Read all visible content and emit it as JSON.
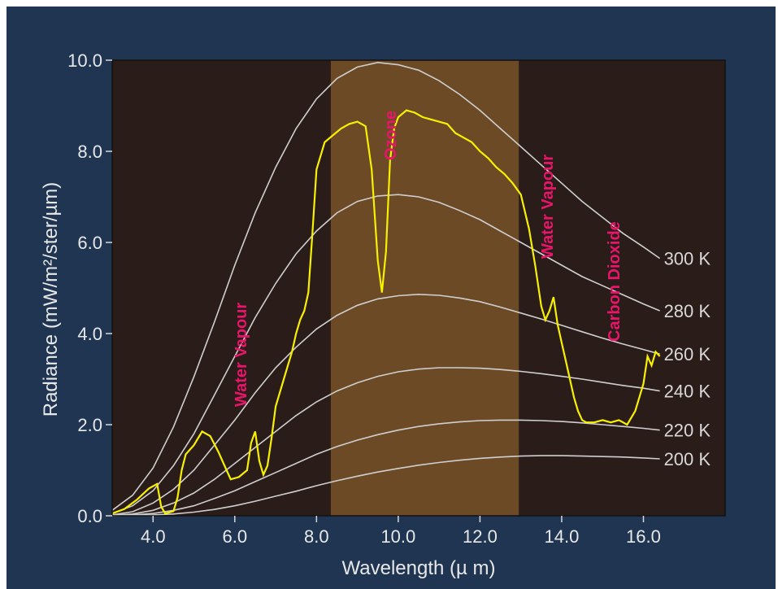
{
  "chart_data": {
    "type": "line",
    "xlabel": "Wavelength (µ m)",
    "ylabel": "Radiance (mW/m²/ster/µm)",
    "xlim": [
      3.0,
      18.0
    ],
    "ylim": [
      0.0,
      10.0
    ],
    "x_ticks": [
      "4.0",
      "6.0",
      "8.0",
      "10.0",
      "12.0",
      "14.0",
      "16.0"
    ],
    "x_tick_values": [
      4,
      6,
      8,
      10,
      12,
      14,
      16
    ],
    "y_ticks": [
      "0.0",
      "2.0",
      "4.0",
      "6.0",
      "8.0",
      "10.0"
    ],
    "y_tick_values": [
      0,
      2,
      4,
      6,
      8,
      10
    ],
    "grid": false,
    "background_color": "#2a1c18",
    "frame_color": "#1f3552",
    "window_color": "#6b4a25",
    "curve_color": "#cfcfcf",
    "measured_color": "#f7f000",
    "annotation_color": "#e8156b",
    "highlight_band": {
      "x_start": 8.35,
      "x_end": 12.95
    },
    "blackbody_curves": [
      {
        "name": "300 K",
        "label": "300 K",
        "x": [
          3.0,
          3.5,
          4.0,
          4.5,
          5.0,
          5.5,
          6.0,
          6.5,
          7.0,
          7.5,
          8.0,
          8.5,
          9.0,
          9.5,
          10.0,
          10.5,
          11.0,
          11.5,
          12.0,
          12.5,
          13.0,
          13.5,
          14.0,
          14.5,
          15.0,
          15.5,
          16.0,
          16.4
        ],
        "y": [
          0.12,
          0.45,
          1.05,
          1.95,
          3.05,
          4.25,
          5.5,
          6.65,
          7.65,
          8.5,
          9.15,
          9.6,
          9.85,
          9.95,
          9.9,
          9.78,
          9.55,
          9.25,
          8.9,
          8.5,
          8.1,
          7.7,
          7.3,
          6.9,
          6.55,
          6.2,
          5.9,
          5.65
        ]
      },
      {
        "name": "280 K",
        "label": "280 K",
        "x": [
          3.0,
          3.5,
          4.0,
          4.5,
          5.0,
          5.5,
          6.0,
          6.5,
          7.0,
          7.5,
          8.0,
          8.5,
          9.0,
          9.5,
          10.0,
          10.5,
          11.0,
          11.5,
          12.0,
          12.5,
          13.0,
          13.5,
          14.0,
          14.5,
          15.0,
          15.5,
          16.0,
          16.4
        ],
        "y": [
          0.05,
          0.22,
          0.55,
          1.1,
          1.8,
          2.65,
          3.5,
          4.35,
          5.1,
          5.75,
          6.25,
          6.65,
          6.9,
          7.02,
          7.05,
          7.0,
          6.88,
          6.7,
          6.5,
          6.25,
          6.0,
          5.75,
          5.5,
          5.25,
          5.05,
          4.85,
          4.65,
          4.5
        ]
      },
      {
        "name": "260 K",
        "label": "260 K",
        "x": [
          3.0,
          3.5,
          4.0,
          4.5,
          5.0,
          5.5,
          6.0,
          6.5,
          7.0,
          7.5,
          8.0,
          8.5,
          9.0,
          9.5,
          10.0,
          10.5,
          11.0,
          11.5,
          12.0,
          12.5,
          13.0,
          13.5,
          14.0,
          14.5,
          15.0,
          15.5,
          16.0,
          16.4
        ],
        "y": [
          0.02,
          0.09,
          0.28,
          0.58,
          1.0,
          1.55,
          2.1,
          2.7,
          3.25,
          3.7,
          4.1,
          4.4,
          4.62,
          4.76,
          4.83,
          4.86,
          4.84,
          4.78,
          4.7,
          4.58,
          4.45,
          4.32,
          4.18,
          4.04,
          3.9,
          3.77,
          3.65,
          3.55
        ]
      },
      {
        "name": "240 K",
        "label": "240 K",
        "x": [
          3.0,
          3.5,
          4.0,
          4.5,
          5.0,
          5.5,
          6.0,
          6.5,
          7.0,
          7.5,
          8.0,
          8.5,
          9.0,
          9.5,
          10.0,
          10.5,
          11.0,
          11.5,
          12.0,
          12.5,
          13.0,
          13.5,
          14.0,
          14.5,
          15.0,
          15.5,
          16.0,
          16.4
        ],
        "y": [
          0.01,
          0.04,
          0.12,
          0.28,
          0.5,
          0.8,
          1.15,
          1.5,
          1.85,
          2.2,
          2.5,
          2.74,
          2.92,
          3.06,
          3.16,
          3.22,
          3.25,
          3.25,
          3.24,
          3.21,
          3.17,
          3.12,
          3.06,
          3.0,
          2.93,
          2.86,
          2.8,
          2.74
        ]
      },
      {
        "name": "220 K",
        "label": "220 K",
        "x": [
          3.0,
          3.5,
          4.0,
          4.5,
          5.0,
          5.5,
          6.0,
          6.5,
          7.0,
          7.5,
          8.0,
          8.5,
          9.0,
          9.5,
          10.0,
          10.5,
          11.0,
          11.5,
          12.0,
          12.5,
          13.0,
          13.5,
          14.0,
          14.5,
          15.0,
          15.5,
          16.0,
          16.4
        ],
        "y": [
          0.0,
          0.02,
          0.05,
          0.12,
          0.22,
          0.38,
          0.55,
          0.75,
          0.95,
          1.15,
          1.35,
          1.52,
          1.66,
          1.78,
          1.88,
          1.96,
          2.02,
          2.06,
          2.09,
          2.1,
          2.1,
          2.09,
          2.07,
          2.04,
          2.0,
          1.96,
          1.92,
          1.88
        ]
      },
      {
        "name": "200 K",
        "label": "200 K",
        "x": [
          3.0,
          3.5,
          4.0,
          4.5,
          5.0,
          5.5,
          6.0,
          6.5,
          7.0,
          7.5,
          8.0,
          8.5,
          9.0,
          9.5,
          10.0,
          10.5,
          11.0,
          11.5,
          12.0,
          12.5,
          13.0,
          13.5,
          14.0,
          14.5,
          15.0,
          15.5,
          16.0,
          16.4
        ],
        "y": [
          0.0,
          0.01,
          0.02,
          0.04,
          0.08,
          0.14,
          0.22,
          0.32,
          0.43,
          0.54,
          0.66,
          0.77,
          0.87,
          0.96,
          1.04,
          1.11,
          1.17,
          1.22,
          1.26,
          1.29,
          1.31,
          1.32,
          1.32,
          1.31,
          1.3,
          1.29,
          1.27,
          1.25
        ]
      }
    ],
    "measured_spectrum": {
      "x": [
        3.0,
        3.3,
        3.6,
        3.9,
        4.1,
        4.2,
        4.3,
        4.5,
        4.6,
        4.7,
        4.8,
        5.0,
        5.2,
        5.4,
        5.6,
        5.8,
        5.9,
        6.1,
        6.3,
        6.4,
        6.5,
        6.6,
        6.7,
        6.8,
        6.9,
        7.0,
        7.1,
        7.2,
        7.3,
        7.4,
        7.5,
        7.6,
        7.7,
        7.8,
        7.9,
        8.0,
        8.2,
        8.4,
        8.6,
        8.8,
        9.0,
        9.2,
        9.35,
        9.5,
        9.6,
        9.7,
        9.8,
        9.9,
        10.0,
        10.2,
        10.4,
        10.6,
        10.8,
        11.0,
        11.2,
        11.4,
        11.6,
        11.8,
        12.0,
        12.2,
        12.4,
        12.6,
        12.8,
        13.0,
        13.2,
        13.35,
        13.5,
        13.6,
        13.7,
        13.8,
        13.9,
        14.0,
        14.1,
        14.2,
        14.3,
        14.4,
        14.5,
        14.6,
        14.8,
        15.0,
        15.2,
        15.4,
        15.6,
        15.8,
        16.0,
        16.1,
        16.2,
        16.3,
        16.4
      ],
      "y": [
        0.05,
        0.15,
        0.35,
        0.6,
        0.7,
        0.2,
        0.05,
        0.1,
        0.4,
        1.0,
        1.35,
        1.55,
        1.85,
        1.75,
        1.4,
        1.0,
        0.8,
        0.85,
        1.0,
        1.6,
        1.85,
        1.2,
        0.9,
        1.1,
        1.7,
        2.4,
        2.7,
        3.0,
        3.3,
        3.6,
        4.0,
        4.3,
        4.5,
        4.9,
        6.2,
        7.6,
        8.2,
        8.35,
        8.5,
        8.6,
        8.65,
        8.55,
        7.6,
        5.6,
        4.9,
        5.8,
        7.8,
        8.5,
        8.75,
        8.9,
        8.85,
        8.75,
        8.7,
        8.65,
        8.6,
        8.4,
        8.3,
        8.2,
        8.0,
        7.85,
        7.65,
        7.5,
        7.3,
        7.05,
        6.3,
        5.5,
        4.6,
        4.3,
        4.5,
        4.8,
        4.2,
        3.8,
        3.4,
        3.0,
        2.6,
        2.3,
        2.1,
        2.05,
        2.05,
        2.1,
        2.05,
        2.1,
        2.0,
        2.3,
        2.9,
        3.5,
        3.3,
        3.6,
        3.5
      ]
    },
    "temperature_labels": [
      "300 K",
      "280 K",
      "260 K",
      "240 K",
      "220 K",
      "200 K"
    ],
    "annotations": {
      "water_vapour_left": "Water Vapour",
      "ozone": "Ozone",
      "water_vapour_right": "Water Vapour",
      "carbon_dioxide": "Carbon Dioxide"
    }
  }
}
